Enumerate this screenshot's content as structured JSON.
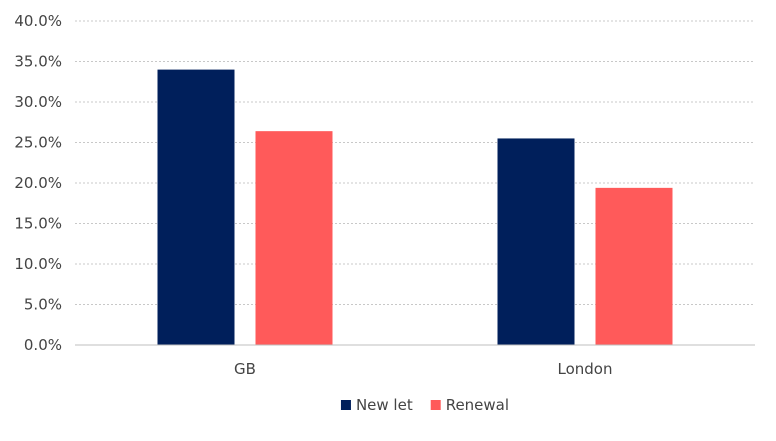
{
  "chart_data": {
    "type": "bar",
    "categories": [
      "GB",
      "London"
    ],
    "series": [
      {
        "name": "New let",
        "values": [
          34.0,
          25.5
        ],
        "color": "#001f5b"
      },
      {
        "name": "Renewal",
        "values": [
          26.4,
          19.4
        ],
        "color": "#ff5a5a"
      }
    ],
    "ylim": [
      0,
      40
    ],
    "yticks": [
      "0.0%",
      "5.0%",
      "10.0%",
      "15.0%",
      "20.0%",
      "25.0%",
      "30.0%",
      "35.0%",
      "40.0%"
    ],
    "ytick_values": [
      0,
      5,
      10,
      15,
      20,
      25,
      30,
      35,
      40
    ],
    "grid": true,
    "legend_position": "bottom",
    "title": "",
    "xlabel": "",
    "ylabel": ""
  }
}
